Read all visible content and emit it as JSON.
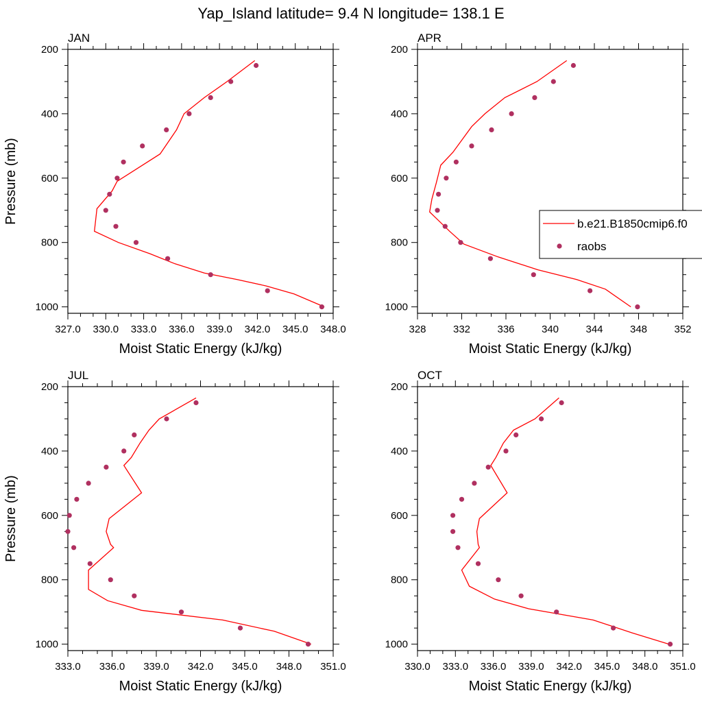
{
  "figure": {
    "title": "Yap_Island  latitude= 9.4 N longitude= 138.1 E"
  },
  "legend": {
    "placement": "right-middle of APR panel",
    "model_label": "b.e21.B1850cmip6.f0",
    "obs_label": "raobs",
    "model_color": "#ff0000",
    "obs_color": "#b03060"
  },
  "chart_data": [
    {
      "type": "line",
      "title": "JAN",
      "xlabel": "Moist Static Energy (kJ/kg)",
      "ylabel": "Pressure (mb)",
      "xlim": [
        327,
        348
      ],
      "ylim": [
        1020,
        200
      ],
      "x_ticks": [
        "327.0",
        "330.0",
        "333.0",
        "336.0",
        "339.0",
        "342.0",
        "345.0",
        "348.0"
      ],
      "y_ticks": [
        "200",
        "400",
        "600",
        "800",
        "1000"
      ],
      "series": [
        {
          "name": "b.e21.B1850cmip6.f0",
          "kind": "line",
          "x": [
            341.8,
            339.6,
            337.8,
            336.2,
            335.6,
            334.3,
            330.9,
            330.5,
            329.3,
            329.1,
            331.0,
            333.5,
            335.4,
            337.8,
            340.4,
            342.7,
            344.9,
            347.3
          ],
          "y": [
            235,
            300,
            350,
            400,
            450,
            525,
            610,
            640,
            695,
            765,
            800,
            835,
            865,
            895,
            915,
            935,
            960,
            1000
          ]
        },
        {
          "name": "raobs",
          "kind": "scatter",
          "x": [
            341.9,
            339.9,
            338.3,
            336.6,
            334.8,
            332.9,
            331.4,
            330.9,
            330.3,
            330.0,
            330.8,
            332.4,
            334.9,
            338.3,
            342.8,
            347.1
          ],
          "y": [
            250,
            300,
            350,
            400,
            450,
            500,
            550,
            600,
            650,
            700,
            750,
            800,
            850,
            900,
            950,
            1000
          ]
        }
      ]
    },
    {
      "type": "line",
      "title": "APR",
      "xlabel": "Moist Static Energy (kJ/kg)",
      "ylabel": "",
      "xlim": [
        328,
        352
      ],
      "ylim": [
        1020,
        200
      ],
      "x_ticks": [
        "328",
        "332",
        "336",
        "340",
        "344",
        "348",
        "352"
      ],
      "y_ticks": [
        "200",
        "400",
        "600",
        "800",
        "1000"
      ],
      "series": [
        {
          "name": "b.e21.B1850cmip6.f0",
          "kind": "line",
          "x": [
            341.5,
            338.8,
            335.9,
            334.1,
            332.9,
            331.2,
            330.1,
            329.7,
            329.3,
            329.1,
            330.9,
            332.2,
            335.3,
            338.9,
            342.4,
            345.0,
            347.3
          ],
          "y": [
            235,
            300,
            350,
            400,
            440,
            520,
            560,
            615,
            665,
            705,
            765,
            805,
            845,
            885,
            915,
            945,
            1000
          ]
        },
        {
          "name": "raobs",
          "kind": "scatter",
          "x": [
            342.1,
            340.3,
            338.6,
            336.5,
            334.7,
            332.9,
            331.5,
            330.6,
            329.9,
            329.8,
            330.5,
            331.9,
            334.6,
            338.5,
            343.6,
            347.9
          ],
          "y": [
            250,
            300,
            350,
            400,
            450,
            500,
            550,
            600,
            650,
            700,
            750,
            800,
            850,
            900,
            950,
            1000
          ]
        }
      ]
    },
    {
      "type": "line",
      "title": "JUL",
      "xlabel": "Moist Static Energy (kJ/kg)",
      "ylabel": "Pressure (mb)",
      "xlim": [
        333,
        351
      ],
      "ylim": [
        1020,
        200
      ],
      "x_ticks": [
        "333.0",
        "336.0",
        "339.0",
        "342.0",
        "345.0",
        "348.0",
        "351.0"
      ],
      "y_ticks": [
        "200",
        "400",
        "600",
        "800",
        "1000"
      ],
      "series": [
        {
          "name": "b.e21.B1850cmip6.f0",
          "kind": "line",
          "x": [
            341.7,
            339.2,
            338.5,
            337.9,
            337.3,
            336.8,
            338.0,
            335.8,
            335.6,
            335.9,
            336.1,
            334.4,
            334.4,
            335.7,
            338.0,
            343.5,
            347.0,
            349.5
          ],
          "y": [
            235,
            300,
            335,
            375,
            420,
            445,
            530,
            610,
            650,
            690,
            700,
            770,
            830,
            865,
            895,
            925,
            960,
            1000
          ]
        },
        {
          "name": "raobs",
          "kind": "scatter",
          "x": [
            341.7,
            339.7,
            337.5,
            336.8,
            335.6,
            334.4,
            333.6,
            333.1,
            333.0,
            333.4,
            334.5,
            335.9,
            337.5,
            340.7,
            344.7,
            349.3
          ],
          "y": [
            250,
            300,
            350,
            400,
            450,
            500,
            550,
            600,
            650,
            700,
            750,
            800,
            850,
            900,
            950,
            1000
          ]
        }
      ]
    },
    {
      "type": "line",
      "title": "OCT",
      "xlabel": "Moist Static Energy (kJ/kg)",
      "ylabel": "",
      "xlim": [
        330,
        351
      ],
      "ylim": [
        1020,
        200
      ],
      "x_ticks": [
        "330.0",
        "333.0",
        "336.0",
        "339.0",
        "342.0",
        "345.0",
        "348.0",
        "351.0"
      ],
      "y_ticks": [
        "200",
        "400",
        "600",
        "800",
        "1000"
      ],
      "series": [
        {
          "name": "b.e21.B1850cmip6.f0",
          "kind": "line",
          "x": [
            341.2,
            339.3,
            337.6,
            336.8,
            336.2,
            335.8,
            337.1,
            334.9,
            334.7,
            334.8,
            334.9,
            333.5,
            334.1,
            336.1,
            338.8,
            343.9,
            347.0,
            349.9
          ],
          "y": [
            235,
            300,
            335,
            375,
            420,
            445,
            530,
            610,
            650,
            690,
            700,
            770,
            820,
            860,
            890,
            925,
            965,
            1000
          ]
        },
        {
          "name": "raobs",
          "kind": "scatter",
          "x": [
            341.4,
            339.8,
            337.8,
            337.0,
            335.6,
            334.5,
            333.5,
            332.8,
            332.8,
            333.2,
            334.8,
            336.4,
            338.2,
            341.0,
            345.5,
            350.0
          ],
          "y": [
            250,
            300,
            350,
            400,
            450,
            500,
            550,
            600,
            650,
            700,
            750,
            800,
            850,
            900,
            950,
            1000
          ]
        }
      ]
    }
  ]
}
